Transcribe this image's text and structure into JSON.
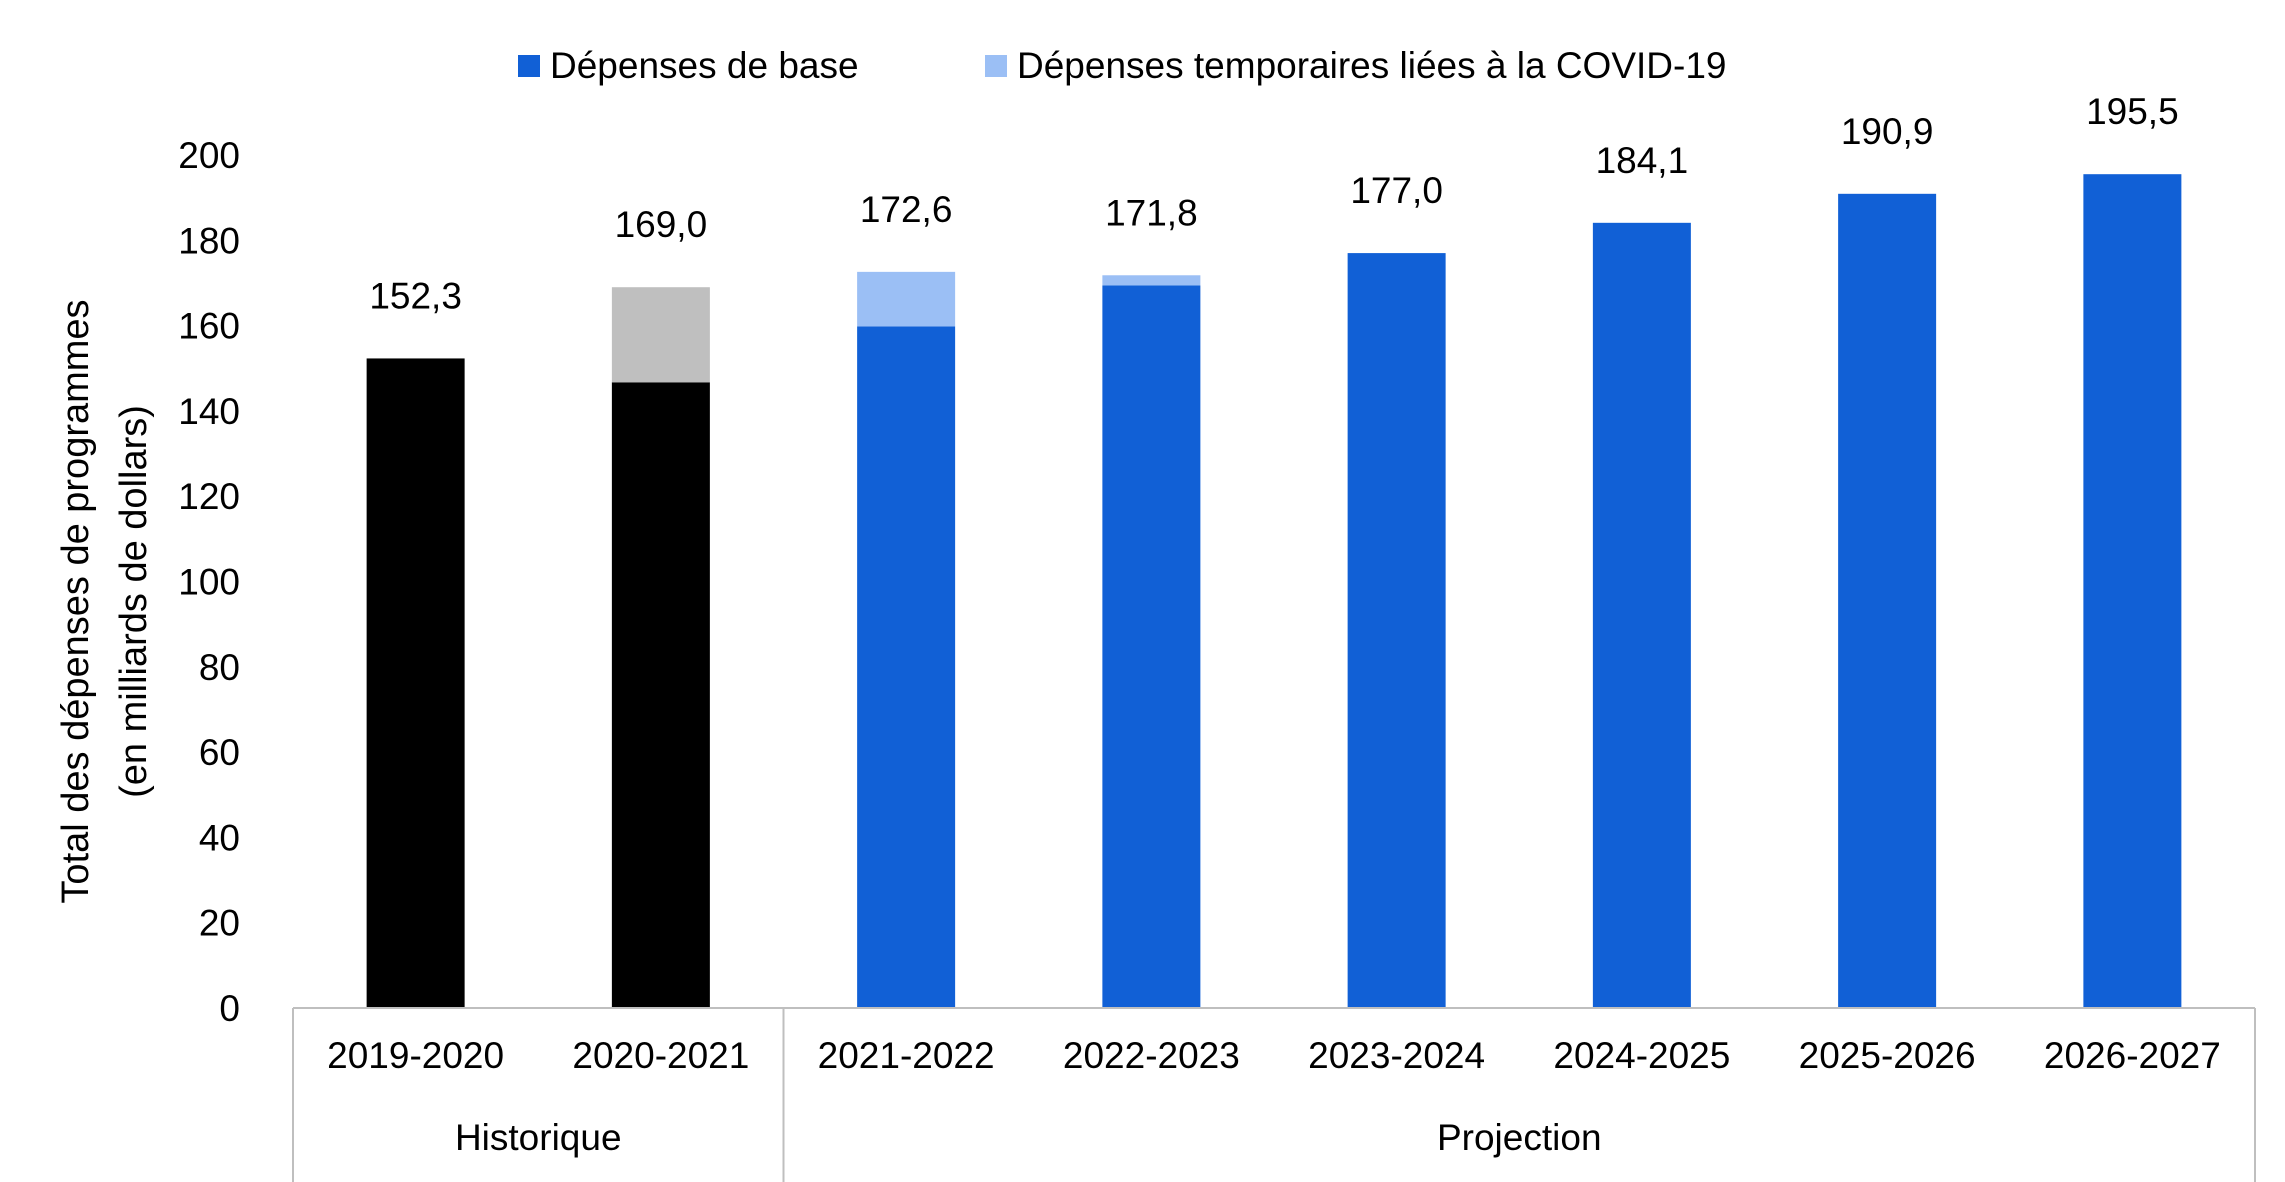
{
  "chart_data": {
    "type": "bar",
    "stacked": true,
    "ylabel": [
      "Total des dépenses de programmes",
      "(en milliards de dollars)"
    ],
    "ylim": [
      0,
      200
    ],
    "yticks": [
      0,
      20,
      40,
      60,
      80,
      100,
      120,
      140,
      160,
      180,
      200
    ],
    "grid": false,
    "legend_position": "top",
    "legend": [
      {
        "name": "Dépenses de base",
        "color": "#1160d6"
      },
      {
        "name": "Dépenses temporaires liées à la COVID-19",
        "color": "#9bbff5"
      }
    ],
    "categories": [
      "2019-2020",
      "2020-2021",
      "2021-2022",
      "2022-2023",
      "2023-2024",
      "2024-2025",
      "2025-2026",
      "2026-2027"
    ],
    "groups": [
      {
        "label": "Historique",
        "count": 2
      },
      {
        "label": "Projection",
        "count": 6
      }
    ],
    "series": [
      {
        "name": "Dépenses de base",
        "values": [
          152.3,
          146.7,
          159.8,
          169.4,
          177.0,
          184.1,
          190.9,
          195.5
        ]
      },
      {
        "name": "Dépenses temporaires liées à la COVID-19",
        "values": [
          0,
          22.3,
          12.8,
          2.4,
          0,
          0,
          0,
          0
        ]
      }
    ],
    "bar_colors": {
      "base": [
        "#000000",
        "#000000",
        "#1160d6",
        "#1160d6",
        "#1160d6",
        "#1160d6",
        "#1160d6",
        "#1160d6"
      ],
      "covid": [
        "#bfbfbf",
        "#bfbfbf",
        "#9bbff5",
        "#9bbff5",
        "#9bbff5",
        "#9bbff5",
        "#9bbff5",
        "#9bbff5"
      ]
    },
    "totals_labels": [
      "152,3",
      "169,0",
      "172,6",
      "171,8",
      "177,0",
      "184,1",
      "190,9",
      "195,5"
    ],
    "totals": [
      152.3,
      169.0,
      172.6,
      171.8,
      177.0,
      184.1,
      190.9,
      195.5
    ]
  }
}
